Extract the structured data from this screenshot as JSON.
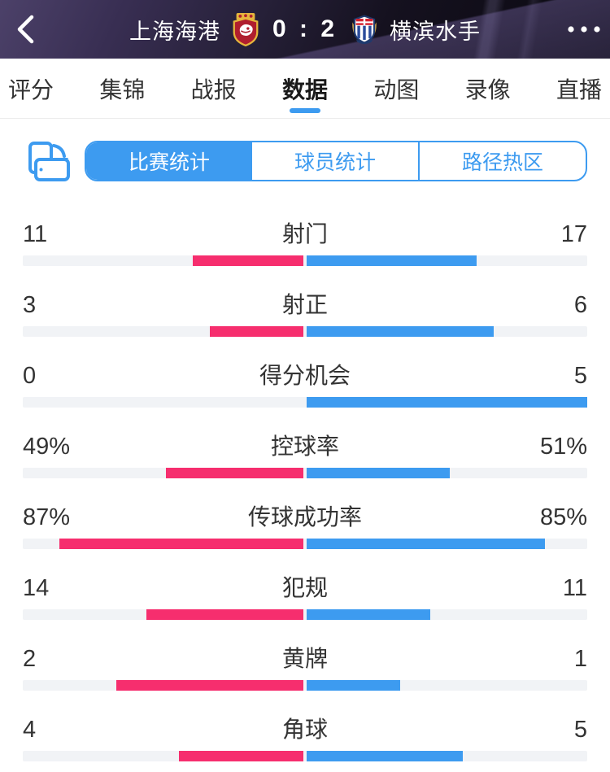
{
  "colors": {
    "accent": "#3d9bf0",
    "home_bar": "#f62e6e",
    "away_bar": "#3d9bf0",
    "bar_track": "#f1f3f6",
    "header_bg": "#17131f"
  },
  "header": {
    "back_icon": "chevron-left",
    "home_team": "上海海港",
    "away_team": "横滨水手",
    "score": "0 : 2",
    "more_icon": "ellipsis"
  },
  "tabs": {
    "active_index": 3,
    "items": [
      {
        "label": "评分"
      },
      {
        "label": "集锦"
      },
      {
        "label": "战报"
      },
      {
        "label": "数据"
      },
      {
        "label": "动图"
      },
      {
        "label": "录像"
      },
      {
        "label": "直播"
      }
    ]
  },
  "subtabs": {
    "active_index": 0,
    "rotate_icon": "rotate-screen",
    "items": [
      {
        "label": "比赛统计"
      },
      {
        "label": "球员统计"
      },
      {
        "label": "路径热区"
      }
    ]
  },
  "stats": {
    "rows": [
      {
        "label": "射门",
        "home": 11,
        "away": 17,
        "unit": "",
        "home_text": "11",
        "away_text": "17"
      },
      {
        "label": "射正",
        "home": 3,
        "away": 6,
        "unit": "",
        "home_text": "3",
        "away_text": "6"
      },
      {
        "label": "得分机会",
        "home": 0,
        "away": 5,
        "unit": "",
        "home_text": "0",
        "away_text": "5"
      },
      {
        "label": "控球率",
        "home": 49,
        "away": 51,
        "unit": "%",
        "home_text": "49%",
        "away_text": "51%"
      },
      {
        "label": "传球成功率",
        "home": 87,
        "away": 85,
        "unit": "%",
        "home_text": "87%",
        "away_text": "85%"
      },
      {
        "label": "犯规",
        "home": 14,
        "away": 11,
        "unit": "",
        "home_text": "14",
        "away_text": "11"
      },
      {
        "label": "黄牌",
        "home": 2,
        "away": 1,
        "unit": "",
        "home_text": "2",
        "away_text": "1"
      },
      {
        "label": "角球",
        "home": 4,
        "away": 5,
        "unit": "",
        "home_text": "4",
        "away_text": "5"
      }
    ]
  },
  "chart_data": {
    "type": "bar",
    "orientation": "horizontal-paired",
    "title": "比赛统计",
    "categories": [
      "射门",
      "射正",
      "得分机会",
      "控球率",
      "传球成功率",
      "犯规",
      "黄牌",
      "角球"
    ],
    "series": [
      {
        "name": "上海海港",
        "color": "#f62e6e",
        "values": [
          11,
          3,
          0,
          49,
          87,
          14,
          2,
          4
        ]
      },
      {
        "name": "横滨水手",
        "color": "#3d9bf0",
        "values": [
          17,
          6,
          5,
          51,
          85,
          11,
          1,
          5
        ]
      }
    ],
    "units": [
      "",
      "",
      "",
      "%",
      "%",
      "",
      "",
      ""
    ],
    "value_scale_rule": "percent rows: value/100 of half-track; count rows: value/(home+away) of half-track",
    "legend_position": "none",
    "grid": false
  }
}
